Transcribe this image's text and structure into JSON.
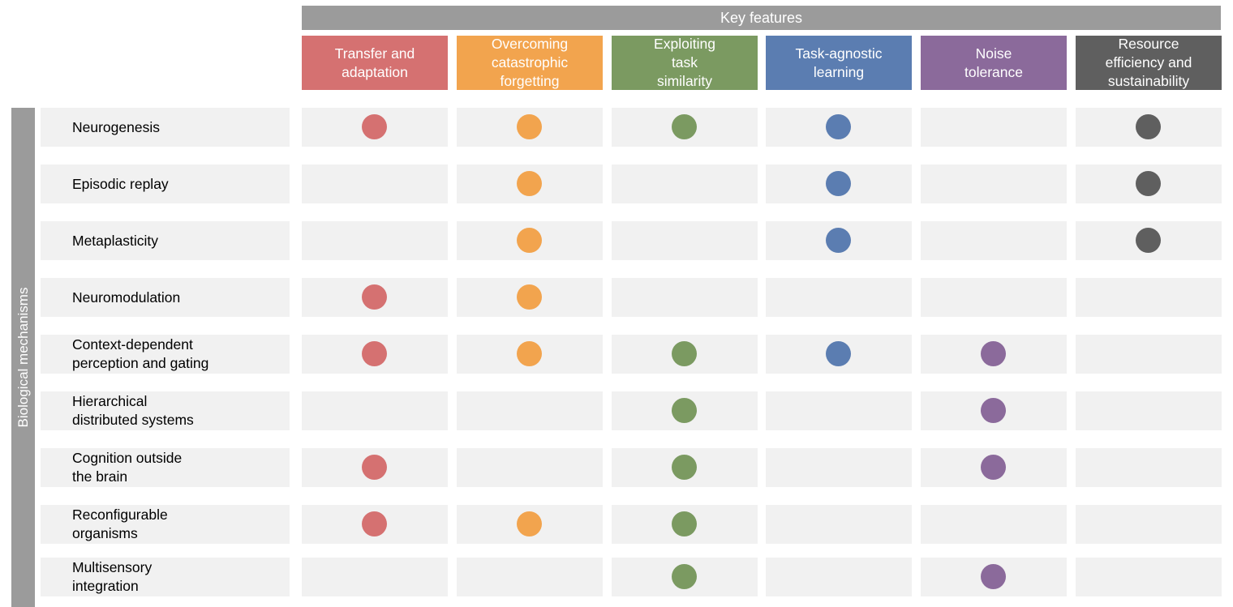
{
  "banner": {
    "top": "Key features",
    "side": "Biological mechanisms"
  },
  "features": [
    {
      "label": "Transfer  and\nadaptation",
      "color": "#d57171"
    },
    {
      "label": "Overcoming\ncatastrophic\nforgetting",
      "color": "#f2a44e"
    },
    {
      "label": "Exploiting\ntask\nsimilarity",
      "color": "#7b9a61"
    },
    {
      "label": "Task-agnostic\nlearning",
      "color": "#5b7db1"
    },
    {
      "label": "Noise\ntolerance",
      "color": "#8b6a9b"
    },
    {
      "label": "Resource\nefficiency and\nsustainability",
      "color": "#5f5f5f"
    }
  ],
  "mechanisms": [
    {
      "label": "Neurogenesis",
      "marks": [
        1,
        1,
        1,
        1,
        0,
        1
      ]
    },
    {
      "label": "Episodic replay",
      "marks": [
        0,
        1,
        0,
        1,
        0,
        1
      ]
    },
    {
      "label": "Metaplasticity",
      "marks": [
        0,
        1,
        0,
        1,
        0,
        1
      ]
    },
    {
      "label": "Neuromodulation",
      "marks": [
        1,
        1,
        0,
        0,
        0,
        0
      ]
    },
    {
      "label": "Context-dependent\nperception and gating",
      "marks": [
        1,
        1,
        1,
        1,
        1,
        0
      ]
    },
    {
      "label": "Hierarchical\ndistributed systems",
      "marks": [
        0,
        0,
        1,
        0,
        1,
        0
      ]
    },
    {
      "label": "Cognition outside\nthe brain",
      "marks": [
        1,
        0,
        1,
        0,
        1,
        0
      ]
    },
    {
      "label": "Reconfigurable\norganisms",
      "marks": [
        1,
        1,
        1,
        0,
        0,
        0
      ]
    },
    {
      "label": "Multisensory\nintegration",
      "marks": [
        0,
        0,
        1,
        0,
        1,
        0
      ]
    }
  ]
}
